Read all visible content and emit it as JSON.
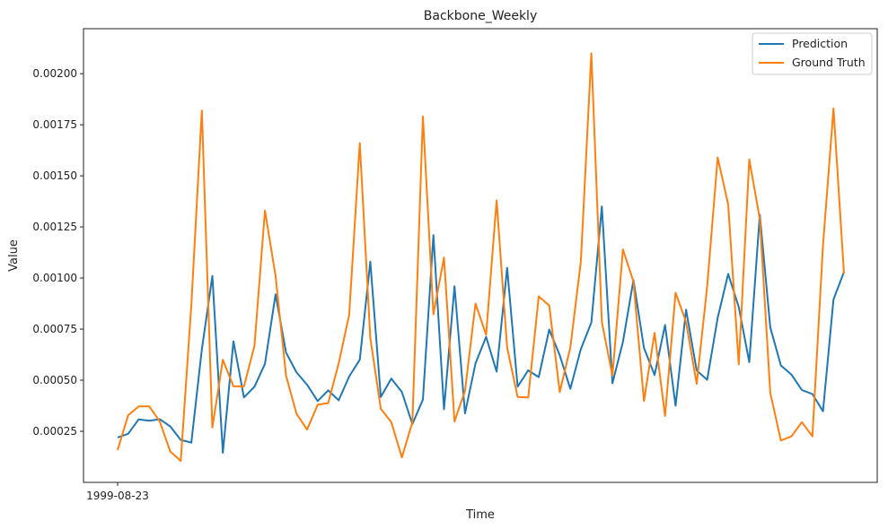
{
  "chart_data": {
    "type": "line",
    "title": "Backbone_Weekly",
    "xlabel": "Time",
    "ylabel": "Value",
    "x_tick_labels": [
      "1999-08-23"
    ],
    "y_tick_labels": [
      "0.00025",
      "0.00050",
      "0.00075",
      "0.00100",
      "0.00125",
      "0.00150",
      "0.00175",
      "0.00200"
    ],
    "y_ticks": [
      0.00025,
      0.0005,
      0.00075,
      0.001,
      0.00125,
      0.0015,
      0.00175,
      0.002
    ],
    "ylim": [
      0.0,
      0.00222
    ],
    "legend_position": "top-right",
    "grid": false,
    "series": [
      {
        "name": "Prediction",
        "color": "#1f77b4",
        "values": [
          0.00022,
          0.000238,
          0.000308,
          0.000302,
          0.000309,
          0.000274,
          0.000208,
          0.000195,
          0.00065,
          0.00101,
          0.000145,
          0.00069,
          0.000416,
          0.000468,
          0.00058,
          0.00092,
          0.000635,
          0.000538,
          0.000478,
          0.000398,
          0.00045,
          0.000402,
          0.000518,
          0.0006,
          0.00108,
          0.000418,
          0.000508,
          0.000442,
          0.000285,
          0.000405,
          0.00121,
          0.000358,
          0.00096,
          0.000338,
          0.000582,
          0.000712,
          0.000542,
          0.00105,
          0.000468,
          0.000548,
          0.000515,
          0.000748,
          0.000622,
          0.000458,
          0.000652,
          0.000782,
          0.00135,
          0.000485,
          0.000688,
          0.00099,
          0.000658,
          0.000525,
          0.00077,
          0.000375,
          0.000845,
          0.000548,
          0.000502,
          0.000805,
          0.00102,
          0.000858,
          0.000588,
          0.00131,
          0.000758,
          0.000572,
          0.000528,
          0.000452,
          0.000432,
          0.000348,
          0.000895,
          0.00103
        ]
      },
      {
        "name": "Ground Truth",
        "color": "#ff7f0e",
        "values": [
          0.000158,
          0.000328,
          0.000372,
          0.000372,
          0.000298,
          0.000152,
          0.000105,
          0.000868,
          0.00182,
          0.000268,
          0.0006,
          0.00047,
          0.00047,
          0.000668,
          0.00133,
          0.00101,
          0.000522,
          0.000335,
          0.000258,
          0.00038,
          0.000388,
          0.000582,
          0.00082,
          0.00166,
          0.000708,
          0.00036,
          0.000295,
          0.000122,
          0.000295,
          0.00179,
          0.000822,
          0.0011,
          0.000298,
          0.000448,
          0.000875,
          0.000722,
          0.00138,
          0.00066,
          0.000418,
          0.000415,
          0.00091,
          0.000865,
          0.000442,
          0.00066,
          0.00108,
          0.0021,
          0.000785,
          0.000522,
          0.00114,
          0.000982,
          0.000398,
          0.000732,
          0.000325,
          0.000928,
          0.000785,
          0.000482,
          0.000958,
          0.00159,
          0.00136,
          0.000578,
          0.00158,
          0.00129,
          0.000438,
          0.000205,
          0.000225,
          0.000295,
          0.000225,
          0.00116,
          0.00183,
          0.00102
        ]
      }
    ]
  }
}
